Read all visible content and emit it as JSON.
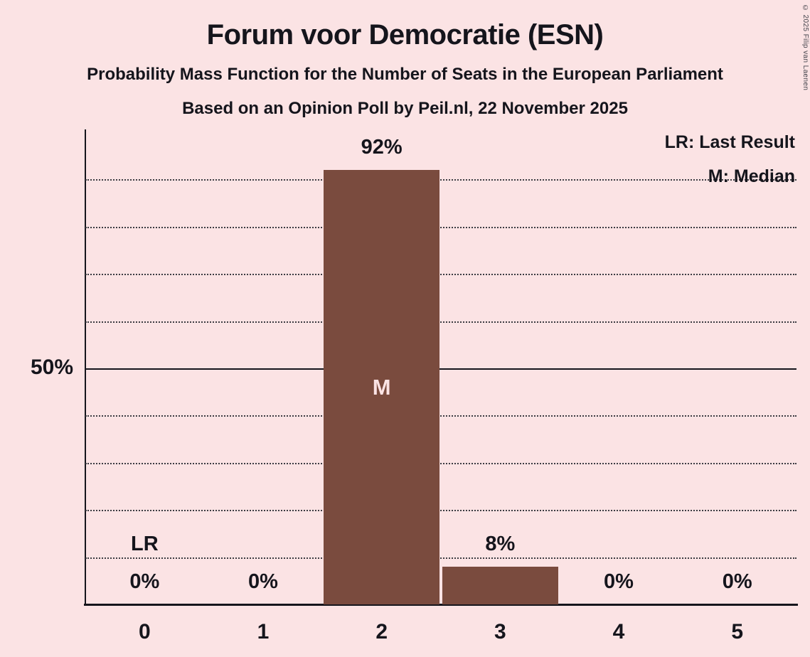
{
  "title": "Forum voor Democratie (ESN)",
  "subtitle_line1": "Probability Mass Function for the Number of Seats in the European Parliament",
  "subtitle_line2": "Based on an Opinion Poll by Peil.nl, 22 November 2025",
  "copyright": "© 2025 Filip van Laenen",
  "legend": {
    "last_result": "LR: Last Result",
    "median": "M: Median"
  },
  "colors": {
    "background": "#fbe3e4",
    "bar": "#7a4b3e",
    "bar_inner_label": "#fbe3e4",
    "text": "#15151c"
  },
  "chart_data": {
    "type": "bar",
    "title": "Forum voor Democratie (ESN)",
    "categories": [
      "0",
      "1",
      "2",
      "3",
      "4",
      "5"
    ],
    "values": [
      0,
      0,
      92,
      8,
      0,
      0
    ],
    "value_labels": [
      "0%",
      "0%",
      "92%",
      "8%",
      "0%",
      "0%"
    ],
    "xlabel": "",
    "ylabel": "",
    "ylim": [
      0,
      100
    ],
    "y_tick": {
      "value": 50,
      "label": "50%"
    },
    "gridlines": [
      10,
      20,
      30,
      40,
      50,
      60,
      70,
      80,
      90
    ],
    "solid_gridline": 50,
    "grid": "dotted-horizontal",
    "legend_position": "top-right",
    "median_marker": "M",
    "median_seat_index": 2,
    "last_result_marker": "LR",
    "last_result_seat_index": 0
  }
}
